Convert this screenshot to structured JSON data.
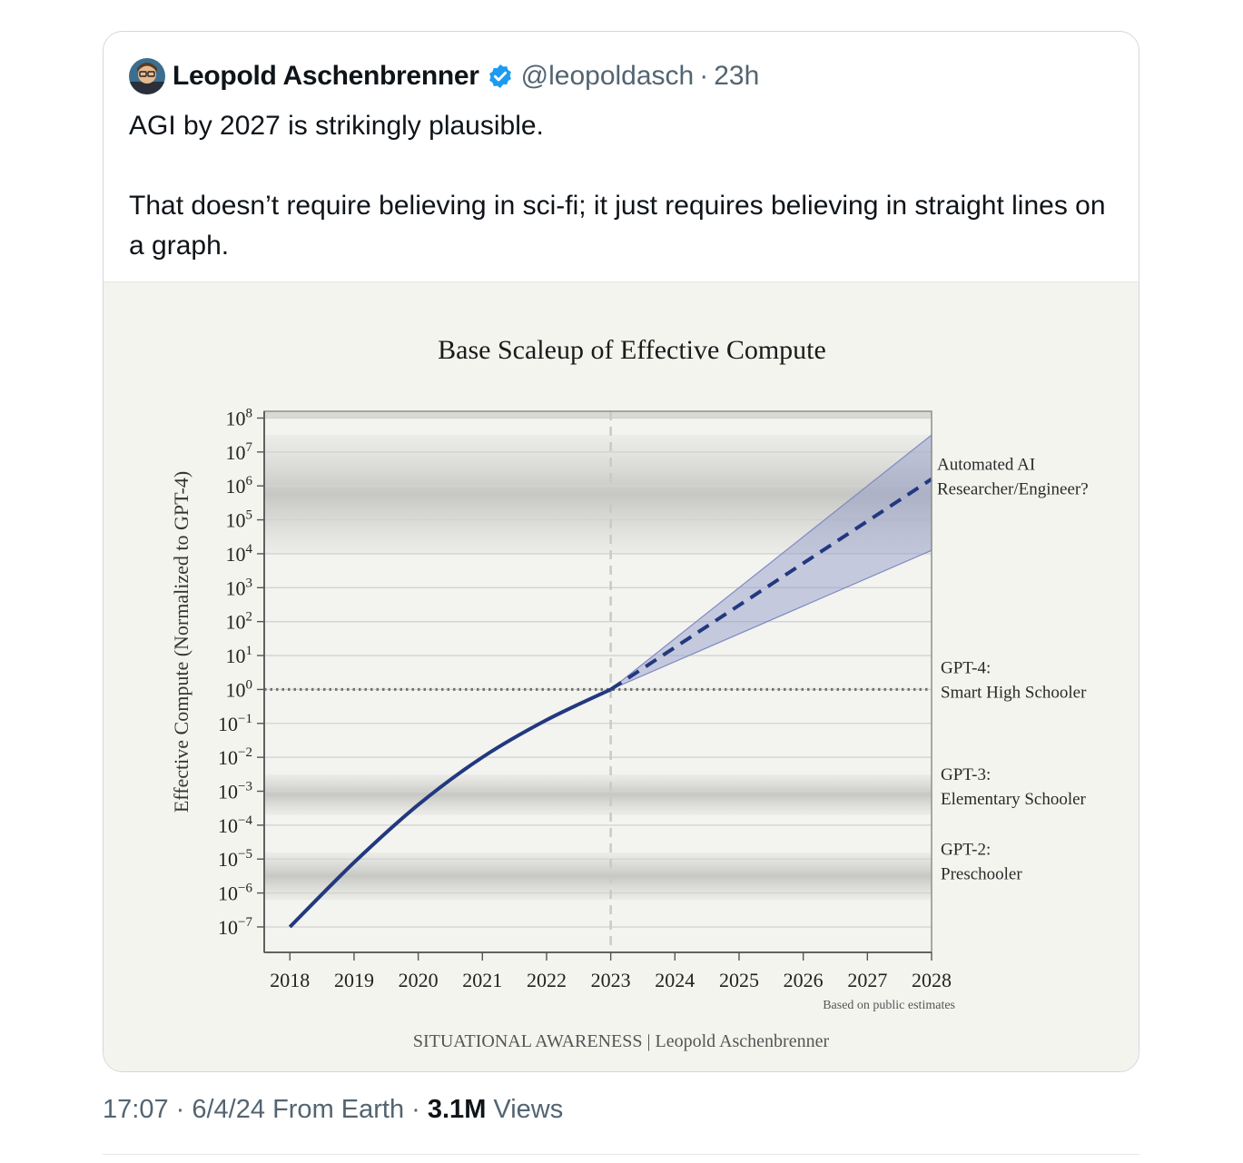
{
  "tweet": {
    "author_name": "Leopold Aschenbrenner",
    "handle": "@leopoldasch",
    "separator": "·",
    "relative_time": "23h",
    "text_line1": "AGI by 2027 is strikingly plausible.",
    "text_line2": "That doesn’t require believing in sci-fi; it just requires believing in straight lines on a graph.",
    "footer_time": "17:07",
    "footer_date": "6/4/24",
    "footer_from": "From Earth",
    "views_count": "3.1M",
    "views_label": "Views",
    "verified_color": "#1d9bf0"
  },
  "chart_data": {
    "type": "line",
    "title": "Base Scaleup of Effective Compute",
    "ylabel": "Effective Compute (Normalized to GPT-4)",
    "xlabel": "",
    "x_ticks": [
      "2018",
      "2019",
      "2020",
      "2021",
      "2022",
      "2023",
      "2024",
      "2025",
      "2026",
      "2027",
      "2028"
    ],
    "y_scale": "log10",
    "y_tick_exponents": [
      -7,
      -6,
      -5,
      -4,
      -3,
      -2,
      -1,
      0,
      1,
      2,
      3,
      4,
      5,
      6,
      7,
      8
    ],
    "xlim": [
      2017.6,
      2028
    ],
    "ylim_log10": [
      -7.75,
      8.2
    ],
    "series": [
      {
        "style": "solid",
        "color": "#22387f",
        "x": [
          2018,
          2019,
          2020,
          2021,
          2022,
          2023
        ],
        "y_log10": [
          -7,
          -5.1,
          -3.4,
          -2,
          -0.9,
          0
        ]
      },
      {
        "style": "dashed",
        "color": "#22387f",
        "x": [
          2023,
          2028
        ],
        "y_log10": [
          0,
          6.2
        ]
      }
    ],
    "uncertainty_band": {
      "x": [
        2023,
        2028
      ],
      "upper_log10": [
        0,
        7.5
      ],
      "lower_log10": [
        0,
        4.1
      ],
      "color": "#8d97c8"
    },
    "vertical_marker": {
      "x": 2023,
      "style": "dashed"
    },
    "horizontal_marker": {
      "y_log10": 0,
      "style": "dotted"
    },
    "shaded_bands_log10": [
      [
        4,
        7.5
      ],
      [
        -3.7,
        -2.5
      ],
      [
        -6.2,
        -4.8
      ]
    ],
    "annotations": [
      {
        "line1": "Automated AI",
        "line2": "Researcher/Engineer?",
        "y_log10": 6.15
      },
      {
        "line1": "GPT-4:",
        "line2": "Smart High Schooler",
        "y_log10": 0.05
      },
      {
        "line1": "GPT-3:",
        "line2": "Elementary Schooler",
        "y_log10": -3.1
      },
      {
        "line1": "GPT-2:",
        "line2": "Preschooler",
        "y_log10": -5.3
      }
    ],
    "source_note": "Based on public estimates",
    "credit": "SITUATIONAL AWARENESS | Leopold Aschenbrenner",
    "grid": true
  }
}
